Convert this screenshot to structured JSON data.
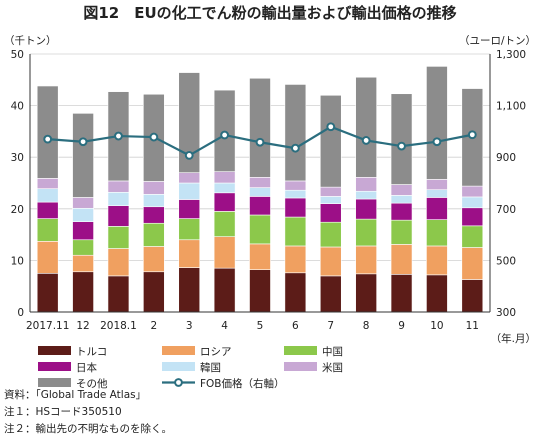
{
  "title": "図12　EUの化工でん粉の輸出量および輸出価格の推移",
  "chart_data": {
    "type": "bar",
    "stacked": true,
    "left_axis": {
      "unit": "（千トン）",
      "min": 0,
      "max": 50,
      "ticks": [
        "0",
        "10",
        "20",
        "30",
        "40",
        "50"
      ]
    },
    "right_axis": {
      "unit": "（ユーロ/トン）",
      "min": 300,
      "max": 1300,
      "ticks": [
        "300",
        "500",
        "700",
        "900",
        "1,100",
        "1,300"
      ]
    },
    "x_unit": "（年.月）",
    "categories": [
      "2017.11",
      "12",
      "2018.1",
      "2",
      "3",
      "4",
      "5",
      "6",
      "7",
      "8",
      "9",
      "10",
      "11"
    ],
    "series": [
      {
        "name": "トルコ",
        "color": "#5c1c18",
        "values": [
          7.5,
          7.8,
          7.0,
          7.8,
          8.6,
          8.5,
          8.2,
          7.6,
          7.0,
          7.4,
          7.3,
          7.2,
          6.3
        ]
      },
      {
        "name": "ロシア",
        "color": "#f0a060",
        "values": [
          6.2,
          3.2,
          5.3,
          4.9,
          5.4,
          6.1,
          5.0,
          5.2,
          5.6,
          5.4,
          5.8,
          5.6,
          6.2
        ]
      },
      {
        "name": "中国",
        "color": "#8cc84b",
        "values": [
          4.4,
          3.0,
          4.3,
          4.5,
          4.1,
          4.9,
          5.6,
          5.6,
          4.8,
          5.2,
          4.7,
          5.1,
          4.2
        ]
      },
      {
        "name": "日本",
        "color": "#9c0f87",
        "values": [
          3.2,
          3.5,
          4.0,
          3.2,
          3.7,
          3.6,
          3.6,
          3.7,
          3.6,
          3.9,
          3.3,
          4.3,
          3.5
        ]
      },
      {
        "name": "韓国",
        "color": "#c3e3f5",
        "values": [
          2.6,
          2.6,
          2.6,
          2.4,
          3.2,
          1.9,
          1.7,
          1.5,
          1.4,
          1.5,
          1.5,
          1.5,
          2.1
        ]
      },
      {
        "name": "米国",
        "color": "#c8a8d4",
        "values": [
          2.0,
          2.1,
          2.2,
          2.5,
          2.0,
          2.2,
          2.0,
          1.8,
          1.8,
          2.7,
          2.1,
          2.0,
          2.1
        ]
      },
      {
        "name": "その他",
        "color": "#8c8c8c",
        "values": [
          17.9,
          16.3,
          17.3,
          16.9,
          19.4,
          15.8,
          19.2,
          18.7,
          17.8,
          19.4,
          17.6,
          21.9,
          18.9
        ]
      }
    ],
    "line": {
      "name": "FOB価格（右軸）",
      "color": "#2b6e7f",
      "values": [
        970,
        960,
        982,
        978,
        907,
        986,
        958,
        935,
        1018,
        965,
        943,
        960,
        987
      ]
    },
    "grid": true
  },
  "notes": [
    "資料：「Global Trade Atlas」",
    "注１：HSコード350510",
    "注２：輸出先の不明なものを除く。"
  ]
}
